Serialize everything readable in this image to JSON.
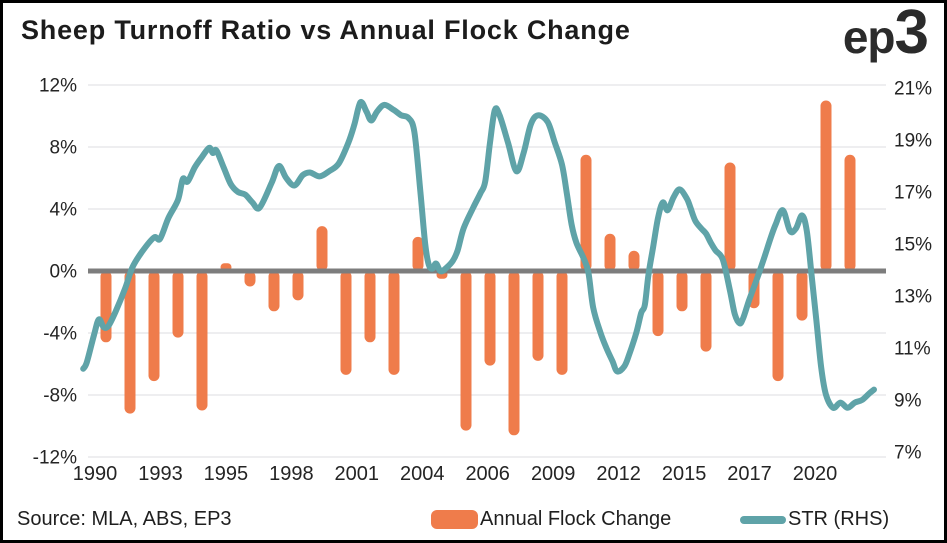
{
  "header": {
    "title": "Sheep Turnoff Ratio vs Annual Flock Change",
    "logo_prefix": "ep",
    "logo_suffix": "3"
  },
  "footer": {
    "source": "Source: MLA, ABS, EP3"
  },
  "legend": [
    {
      "label": "Annual Flock Change",
      "swatch": "bar-swatch"
    },
    {
      "label": "STR (RHS)",
      "swatch": "line-swatch"
    }
  ],
  "colors": {
    "bar": "#ef7c4b",
    "line": "#5fa3a8",
    "zero_line": "#7d7d7d",
    "gridline": "#e8e8eb",
    "axis_text": "#242424",
    "background": "#ffffff",
    "border": "#000000"
  },
  "chart_data": {
    "type": "bar+line (dual axis)",
    "title": "Sheep Turnoff Ratio vs Annual Flock Change",
    "grid": "horizontal only",
    "legend_position": "bottom",
    "left_axis": {
      "series": "Annual Flock Change",
      "ticks": [
        "12%",
        "8%",
        "4%",
        "0%",
        "-4%",
        "-8%",
        "-12%"
      ],
      "values": [
        12,
        8,
        4,
        0,
        -4,
        -8,
        -12
      ],
      "range": [
        -12,
        12
      ]
    },
    "right_axis": {
      "series": "STR (RHS)",
      "ticks": [
        "21%",
        "19%",
        "17%",
        "15%",
        "13%",
        "11%",
        "9%",
        "7%"
      ],
      "values": [
        21,
        19,
        17,
        15,
        13,
        11,
        9,
        7
      ],
      "range": [
        7,
        21
      ]
    },
    "x_axis": {
      "labels": [
        "1990",
        "1993",
        "1995",
        "1998",
        "2001",
        "2004",
        "2006",
        "2009",
        "2012",
        "2015",
        "2017",
        "2020"
      ],
      "range_years": [
        1990,
        2023
      ]
    },
    "bar_series": {
      "name": "Annual Flock Change",
      "axis": "left",
      "unit": "%",
      "years": [
        1991,
        1992,
        1993,
        1994,
        1995,
        1996,
        1997,
        1998,
        1999,
        2000,
        2001,
        2002,
        2003,
        2004,
        2005,
        2006,
        2007,
        2008,
        2009,
        2010,
        2011,
        2012,
        2013,
        2014,
        2015,
        2016,
        2017,
        2018,
        2019,
        2020,
        2021,
        2022
      ],
      "values": [
        -4.6,
        -9.2,
        -7.1,
        -4.3,
        -9.0,
        0.5,
        -1.0,
        -2.6,
        -1.9,
        2.9,
        -6.7,
        -4.6,
        -6.7,
        2.2,
        -0.5,
        -10.3,
        -6.1,
        -10.6,
        -5.8,
        -6.7,
        7.5,
        2.4,
        1.3,
        -4.2,
        -2.6,
        -5.2,
        7.0,
        -2.4,
        -7.1,
        -3.2,
        11.0,
        7.5
      ]
    },
    "line_series": {
      "name": "STR (RHS)",
      "axis": "right",
      "unit": "%",
      "points": [
        [
          1990.05,
          10.2
        ],
        [
          1990.2,
          10.45
        ],
        [
          1990.5,
          11.5
        ],
        [
          1990.7,
          12.1
        ],
        [
          1990.9,
          11.8
        ],
        [
          1991.1,
          11.85
        ],
        [
          1991.4,
          12.4
        ],
        [
          1991.8,
          13.3
        ],
        [
          1992.1,
          14.1
        ],
        [
          1992.5,
          14.7
        ],
        [
          1993.0,
          15.25
        ],
        [
          1993.25,
          15.2
        ],
        [
          1993.6,
          16.0
        ],
        [
          1994.0,
          16.7
        ],
        [
          1994.2,
          17.5
        ],
        [
          1994.4,
          17.4
        ],
        [
          1994.7,
          17.95
        ],
        [
          1995.0,
          18.35
        ],
        [
          1995.3,
          18.7
        ],
        [
          1995.45,
          18.5
        ],
        [
          1995.6,
          18.6
        ],
        [
          1995.9,
          17.95
        ],
        [
          1996.2,
          17.3
        ],
        [
          1996.5,
          17.0
        ],
        [
          1996.8,
          16.9
        ],
        [
          1997.1,
          16.6
        ],
        [
          1997.4,
          16.4
        ],
        [
          1997.9,
          17.35
        ],
        [
          1998.2,
          18.0
        ],
        [
          1998.5,
          17.55
        ],
        [
          1998.85,
          17.25
        ],
        [
          1999.2,
          17.65
        ],
        [
          1999.5,
          17.75
        ],
        [
          1999.9,
          17.6
        ],
        [
          2000.3,
          17.8
        ],
        [
          2000.7,
          18.1
        ],
        [
          2001.1,
          18.9
        ],
        [
          2001.35,
          19.6
        ],
        [
          2001.6,
          20.45
        ],
        [
          2001.85,
          20.1
        ],
        [
          2002.05,
          19.75
        ],
        [
          2002.3,
          20.1
        ],
        [
          2002.6,
          20.35
        ],
        [
          2003.0,
          20.15
        ],
        [
          2003.3,
          19.95
        ],
        [
          2003.6,
          19.85
        ],
        [
          2003.85,
          19.3
        ],
        [
          2004.1,
          17.0
        ],
        [
          2004.3,
          15.0
        ],
        [
          2004.45,
          14.2
        ],
        [
          2004.6,
          14.05
        ],
        [
          2004.75,
          14.25
        ],
        [
          2004.95,
          13.95
        ],
        [
          2005.2,
          14.1
        ],
        [
          2005.45,
          14.35
        ],
        [
          2005.65,
          14.75
        ],
        [
          2005.9,
          15.6
        ],
        [
          2006.3,
          16.4
        ],
        [
          2006.6,
          16.95
        ],
        [
          2006.8,
          17.4
        ],
        [
          2007.0,
          18.9
        ],
        [
          2007.2,
          20.15
        ],
        [
          2007.4,
          19.95
        ],
        [
          2007.75,
          18.9
        ],
        [
          2008.1,
          17.8
        ],
        [
          2008.4,
          18.5
        ],
        [
          2008.7,
          19.6
        ],
        [
          2009.0,
          19.95
        ],
        [
          2009.4,
          19.7
        ],
        [
          2009.7,
          18.9
        ],
        [
          2010.0,
          18.05
        ],
        [
          2010.2,
          16.95
        ],
        [
          2010.4,
          15.75
        ],
        [
          2010.6,
          15.05
        ],
        [
          2010.9,
          14.45
        ],
        [
          2011.1,
          13.9
        ],
        [
          2011.3,
          12.55
        ],
        [
          2011.6,
          11.6
        ],
        [
          2011.85,
          11.0
        ],
        [
          2012.1,
          10.5
        ],
        [
          2012.3,
          10.1
        ],
        [
          2012.6,
          10.3
        ],
        [
          2012.8,
          10.75
        ],
        [
          2013.1,
          11.6
        ],
        [
          2013.3,
          12.35
        ],
        [
          2013.45,
          12.65
        ],
        [
          2013.6,
          13.8
        ],
        [
          2013.8,
          14.9
        ],
        [
          2014.0,
          16.0
        ],
        [
          2014.2,
          16.6
        ],
        [
          2014.4,
          16.3
        ],
        [
          2014.65,
          16.8
        ],
        [
          2014.9,
          17.1
        ],
        [
          2015.2,
          16.75
        ],
        [
          2015.35,
          16.4
        ],
        [
          2015.55,
          15.9
        ],
        [
          2015.8,
          15.6
        ],
        [
          2016.0,
          15.4
        ],
        [
          2016.2,
          15.05
        ],
        [
          2016.4,
          14.75
        ],
        [
          2016.7,
          14.4
        ],
        [
          2017.0,
          13.2
        ],
        [
          2017.2,
          12.3
        ],
        [
          2017.4,
          11.95
        ],
        [
          2017.55,
          12.15
        ],
        [
          2017.8,
          12.85
        ],
        [
          2018.1,
          13.6
        ],
        [
          2018.4,
          14.4
        ],
        [
          2018.7,
          15.25
        ],
        [
          2018.9,
          15.75
        ],
        [
          2019.2,
          16.3
        ],
        [
          2019.5,
          15.5
        ],
        [
          2019.75,
          15.6
        ],
        [
          2020.0,
          16.1
        ],
        [
          2020.2,
          15.5
        ],
        [
          2020.4,
          13.8
        ],
        [
          2020.6,
          12.05
        ],
        [
          2020.8,
          10.25
        ],
        [
          2021.0,
          9.2
        ],
        [
          2021.3,
          8.7
        ],
        [
          2021.6,
          8.9
        ],
        [
          2021.9,
          8.7
        ],
        [
          2022.2,
          8.9
        ],
        [
          2022.5,
          9.0
        ],
        [
          2022.8,
          9.25
        ],
        [
          2023.0,
          9.4
        ]
      ]
    }
  }
}
